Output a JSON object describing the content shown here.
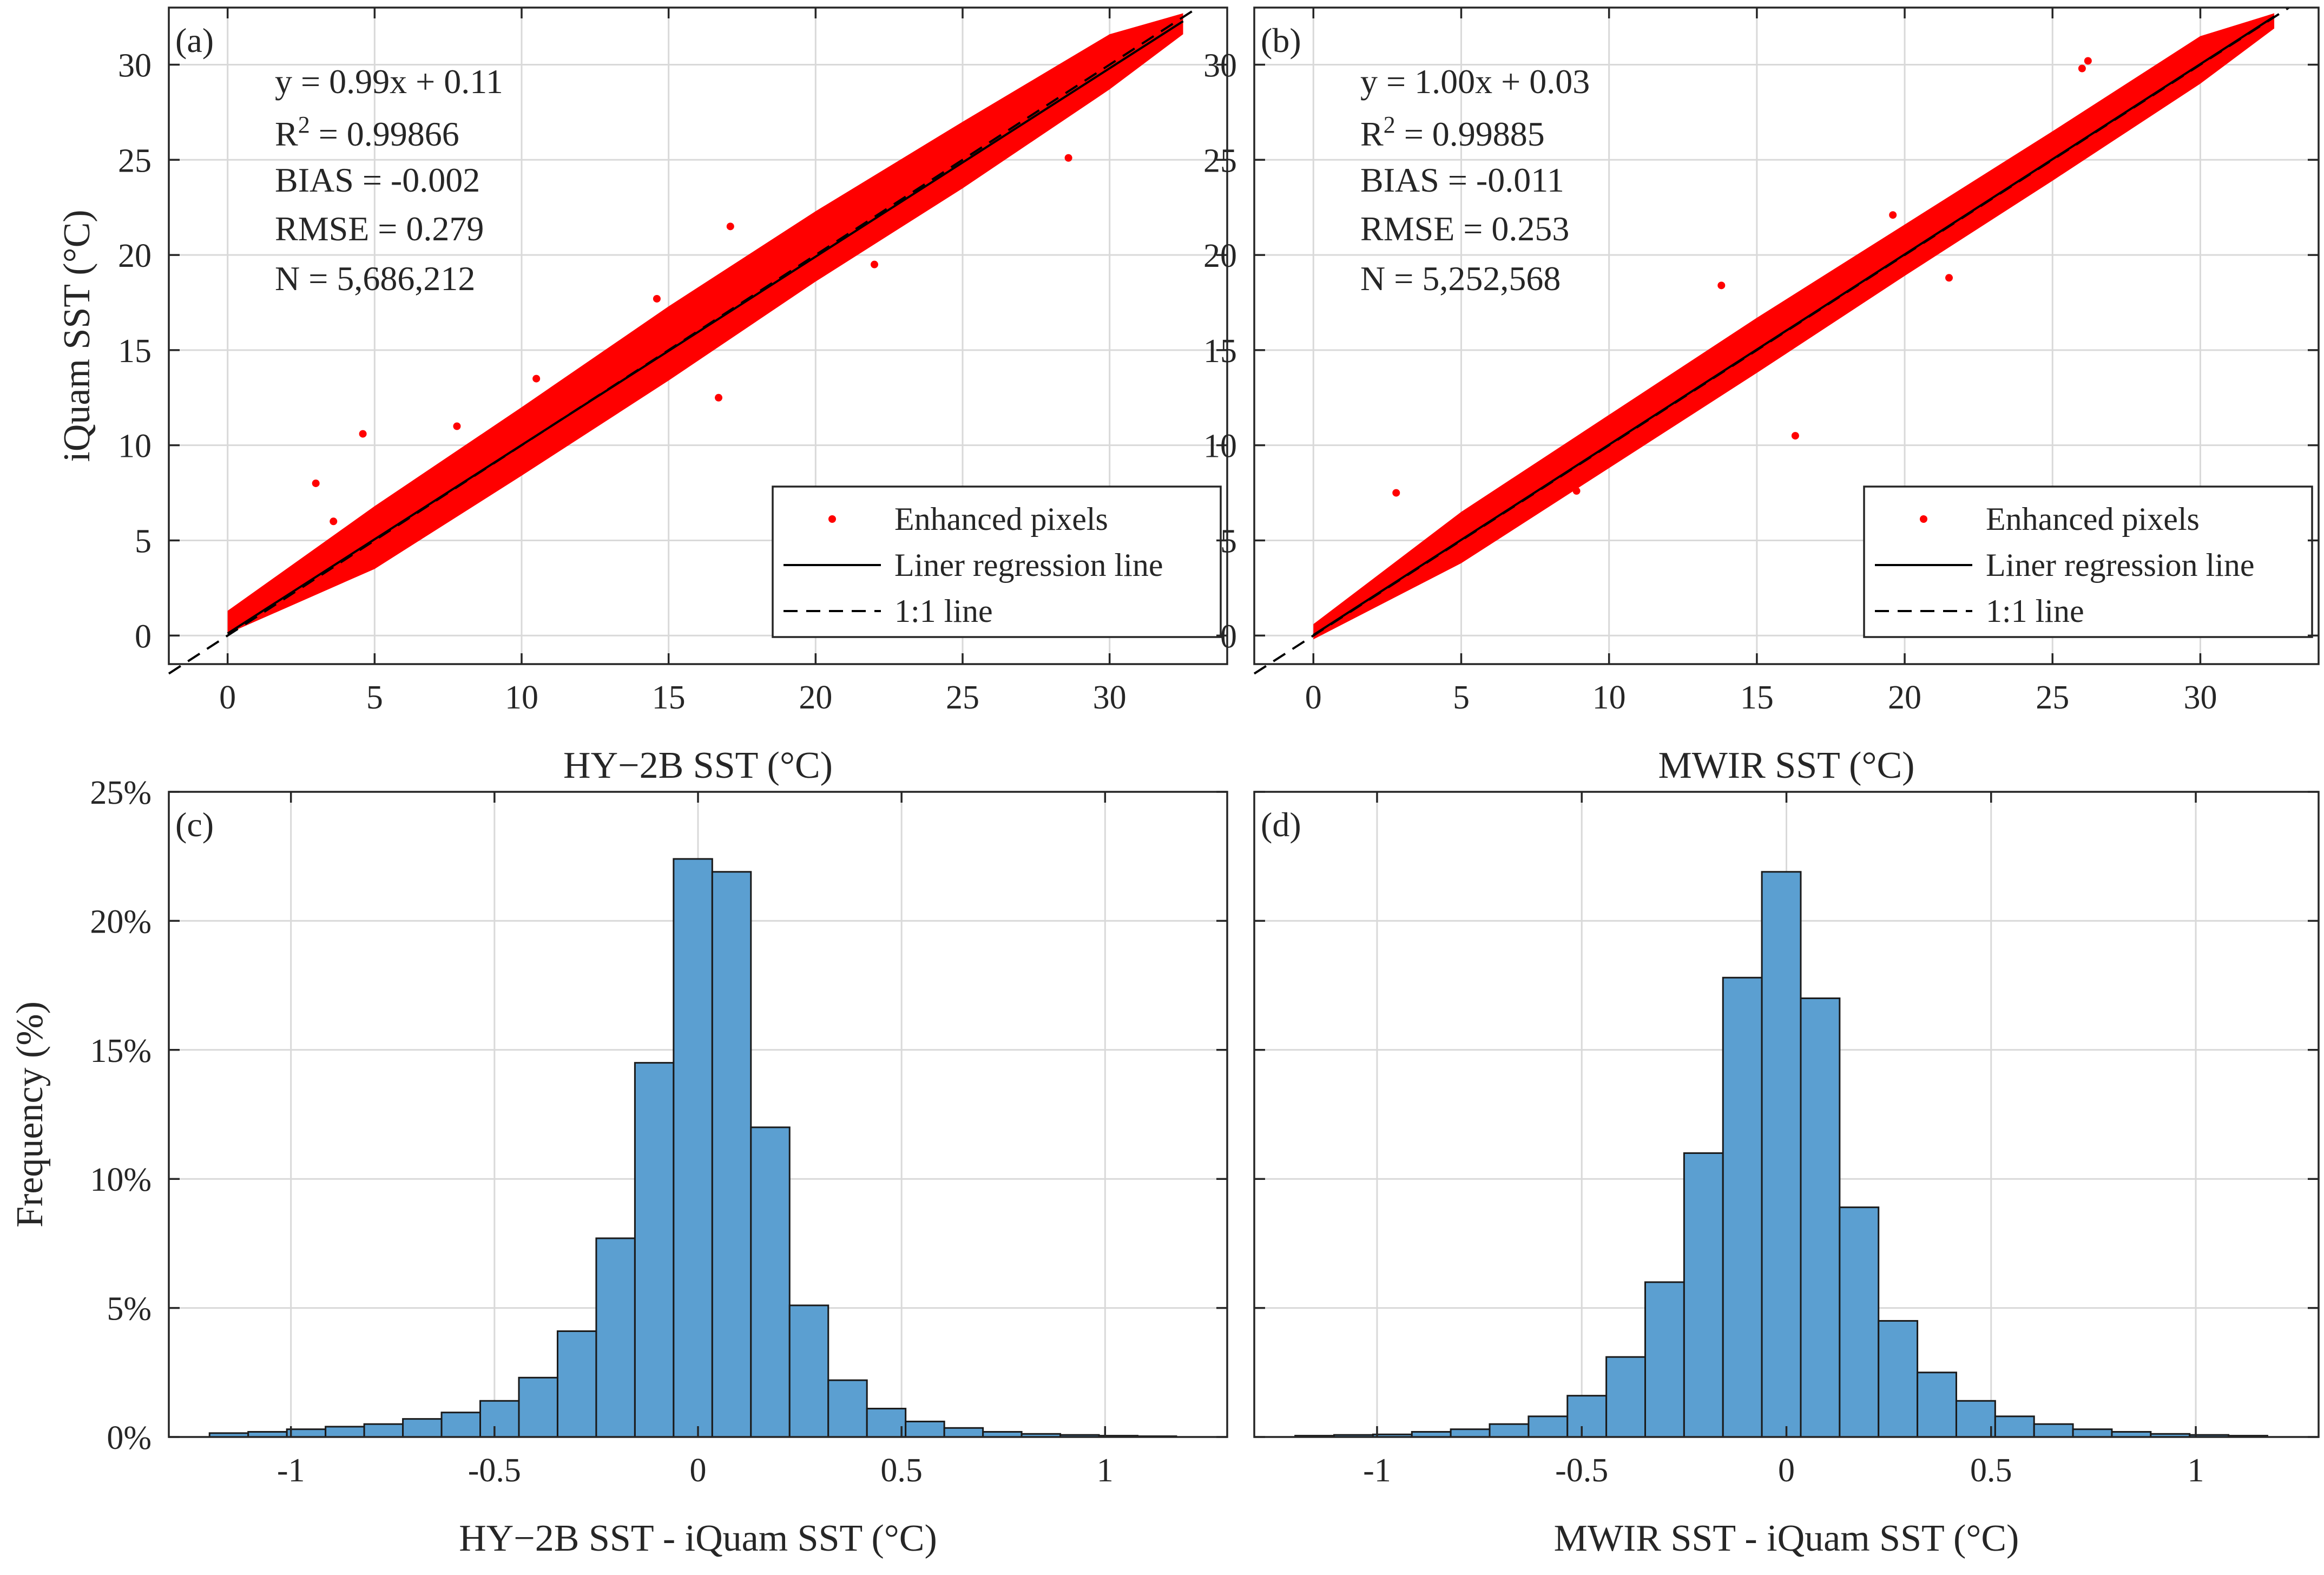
{
  "chart_data": [
    {
      "type": "scatter",
      "panel_label": "(a)",
      "title": "",
      "xlabel": "HY−2B SST (°C)",
      "ylabel": "iQuam SST (°C)",
      "xlim": [
        -2,
        34
      ],
      "ylim": [
        -1.5,
        33
      ],
      "xticks": [
        0,
        5,
        10,
        15,
        20,
        25,
        30
      ],
      "yticks": [
        0,
        5,
        10,
        15,
        20,
        25,
        30
      ],
      "grid": true,
      "regression": {
        "slope": 0.99,
        "intercept": 0.11
      },
      "stats": [
        "y = 0.99x + 0.11",
        "= 0.99866",
        "BIAS = -0.002",
        "RMSE = 0.279",
        "N = 5,686,212"
      ],
      "r2_prefix": "R",
      "r2_exp": "2",
      "band": [
        [
          0,
          0.1,
          1.3
        ],
        [
          5,
          3.5,
          6.8
        ],
        [
          10,
          8.4,
          12.0
        ],
        [
          15,
          13.4,
          17.3
        ],
        [
          20,
          18.6,
          22.3
        ],
        [
          25,
          23.5,
          27.0
        ],
        [
          30,
          28.7,
          31.6
        ],
        [
          32.5,
          31.6,
          32.7
        ]
      ],
      "outliers": [
        [
          3.0,
          8.0
        ],
        [
          4.6,
          10.6
        ],
        [
          3.6,
          6.0
        ],
        [
          7.8,
          11.0
        ],
        [
          16.7,
          12.5
        ],
        [
          17.1,
          21.5
        ],
        [
          28.6,
          25.1
        ],
        [
          14.6,
          17.7
        ],
        [
          10.5,
          13.5
        ],
        [
          22.0,
          19.5
        ]
      ],
      "legend": {
        "position": "bottom-right",
        "entries": [
          "Enhanced pixels",
          "Liner regression line",
          "1:1 line"
        ]
      }
    },
    {
      "type": "scatter",
      "panel_label": "(b)",
      "title": "",
      "xlabel": "MWIR SST (°C)",
      "ylabel": "",
      "xlim": [
        -2,
        34
      ],
      "ylim": [
        -1.5,
        33
      ],
      "xticks": [
        0,
        5,
        10,
        15,
        20,
        25,
        30
      ],
      "yticks": [
        0,
        5,
        10,
        15,
        20,
        25,
        30
      ],
      "grid": true,
      "regression": {
        "slope": 1.0,
        "intercept": 0.03
      },
      "stats": [
        "y = 1.00x + 0.03",
        "= 0.99885",
        "BIAS = -0.011",
        "RMSE = 0.253",
        "N = 5,252,568"
      ],
      "r2_prefix": "R",
      "r2_exp": "2",
      "band": [
        [
          0,
          -0.2,
          0.6
        ],
        [
          5,
          3.8,
          6.5
        ],
        [
          10,
          8.8,
          11.6
        ],
        [
          15,
          13.8,
          16.7
        ],
        [
          20,
          18.9,
          21.6
        ],
        [
          25,
          23.9,
          26.5
        ],
        [
          30,
          29.0,
          31.5
        ],
        [
          32.5,
          31.9,
          32.7
        ]
      ],
      "outliers": [
        [
          2.8,
          7.5
        ],
        [
          26.2,
          30.2
        ],
        [
          16.3,
          10.5
        ],
        [
          26.0,
          29.8
        ],
        [
          21.5,
          18.8
        ],
        [
          13.8,
          18.4
        ],
        [
          8.9,
          7.6
        ],
        [
          19.6,
          22.1
        ]
      ],
      "legend": {
        "position": "bottom-right",
        "entries": [
          "Enhanced pixels",
          "Liner regression line",
          "1:1 line"
        ]
      }
    },
    {
      "type": "bar",
      "panel_label": "(c)",
      "title": "",
      "xlabel": "HY−2B SST - iQuam SST (°C)",
      "ylabel": "Frequency (%)",
      "xlim": [
        -1.3,
        1.3
      ],
      "ylim": [
        0,
        25
      ],
      "xticks": [
        -1,
        -0.5,
        0,
        0.5,
        1
      ],
      "xtick_labels": [
        "-1",
        "-0.5",
        "0",
        "0.5",
        "1"
      ],
      "yticks": [
        0,
        5,
        10,
        15,
        20,
        25
      ],
      "ytick_labels": [
        "0%",
        "5%",
        "10%",
        "15%",
        "20%",
        "25%"
      ],
      "grid": true,
      "bin_start": -1.2,
      "bin_width": 0.095,
      "values": [
        0.15,
        0.2,
        0.3,
        0.4,
        0.5,
        0.7,
        0.95,
        1.4,
        2.3,
        4.1,
        7.7,
        14.5,
        22.4,
        21.9,
        12.0,
        5.1,
        2.2,
        1.1,
        0.6,
        0.35,
        0.2,
        0.12,
        0.08,
        0.05,
        0.03
      ]
    },
    {
      "type": "bar",
      "panel_label": "(d)",
      "title": "",
      "xlabel": "MWIR SST - iQuam SST (°C)",
      "ylabel": "",
      "xlim": [
        -1.3,
        1.3
      ],
      "ylim": [
        0,
        25
      ],
      "xticks": [
        -1,
        -0.5,
        0,
        0.5,
        1
      ],
      "xtick_labels": [
        "-1",
        "-0.5",
        "0",
        "0.5",
        "1"
      ],
      "yticks": [
        0,
        5,
        10,
        15,
        20,
        25
      ],
      "ytick_labels": [
        "",
        "",
        "",
        "",
        "",
        ""
      ],
      "grid": true,
      "bin_start": -1.2,
      "bin_width": 0.095,
      "values": [
        0.05,
        0.08,
        0.1,
        0.2,
        0.3,
        0.5,
        0.8,
        1.6,
        3.1,
        6.0,
        11.0,
        17.8,
        21.9,
        17.0,
        8.9,
        4.5,
        2.5,
        1.4,
        0.8,
        0.5,
        0.3,
        0.2,
        0.12,
        0.08,
        0.05
      ]
    }
  ]
}
